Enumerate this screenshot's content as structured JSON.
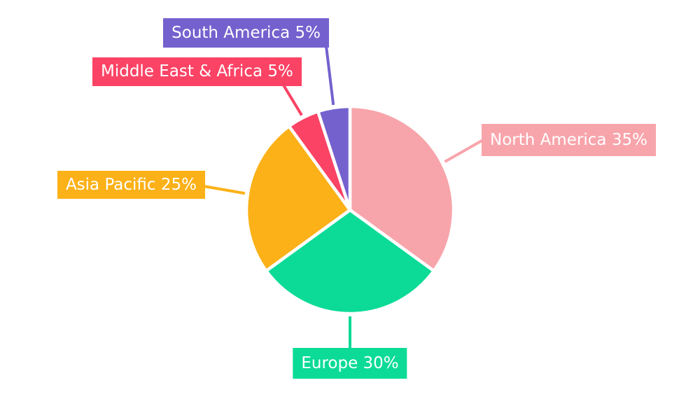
{
  "page": {
    "background": "#ffffff",
    "text_color": "#ffffff"
  },
  "chart_data": {
    "type": "pie",
    "title": "",
    "total": 100,
    "start": "top",
    "direction": "clockwise",
    "grid": false,
    "legend": "none",
    "labels_as": "callout-badges-with-leader-lines",
    "slice_gap_color": "#ffffff",
    "slices": [
      {
        "label": "North America",
        "value": 35,
        "display": "North America 35%",
        "color": "#F8A4AB"
      },
      {
        "label": "Europe",
        "value": 30,
        "display": "Europe 30%",
        "color": "#0BDB96"
      },
      {
        "label": "Asia Pacific",
        "value": 25,
        "display": "Asia Pacific 25%",
        "color": "#FBB117"
      },
      {
        "label": "Middle East & Africa",
        "value": 5,
        "display": "Middle East & Africa 5%",
        "color": "#FB4365"
      },
      {
        "label": "South America",
        "value": 5,
        "display": "South America 5%",
        "color": "#7561CE"
      }
    ]
  }
}
